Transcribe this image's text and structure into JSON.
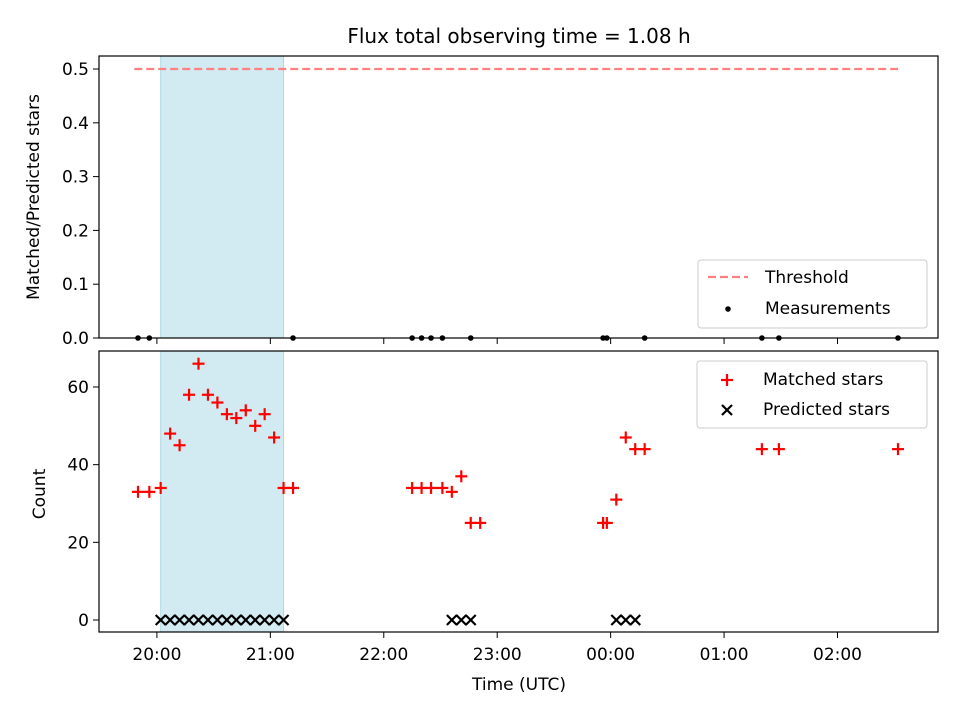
{
  "figure": {
    "title": "Flux total observing time = 1.08 h"
  },
  "colors": {
    "threshold": "#ff8080",
    "measurements": "#000000",
    "matched": "#ff0000",
    "predicted": "#000000",
    "shade": "#add8e6"
  },
  "chart_data": [
    {
      "type": "scatter",
      "panel": "top",
      "ylabel": "Matched/Predicted stars",
      "xlabel": "",
      "ylim": [
        0,
        0.52
      ],
      "yticks": [
        0.0,
        0.1,
        0.2,
        0.3,
        0.4,
        0.5
      ],
      "ytick_labels": [
        "0.0",
        "0.1",
        "0.2",
        "0.3",
        "0.4",
        "0.5"
      ],
      "x_units": "time (UTC), starting 19:50",
      "legend_position": "lower right",
      "shaded_span": [
        "20:02",
        "21:07"
      ],
      "series": [
        {
          "name": "Threshold",
          "style": "dashed-line",
          "x": [
            "19:48",
            "02:32"
          ],
          "y": [
            0.5,
            0.5
          ]
        },
        {
          "name": "Measurements",
          "style": "dot",
          "x": [
            "19:50",
            "19:56",
            "21:12",
            "22:15",
            "22:20",
            "22:25",
            "22:31",
            "22:46",
            "23:56",
            "23:58",
            "00:18",
            "01:20",
            "01:29",
            "02:32"
          ],
          "y": [
            0,
            0,
            0,
            0,
            0,
            0,
            0,
            0,
            0,
            0,
            0,
            0,
            0,
            0
          ]
        }
      ]
    },
    {
      "type": "scatter",
      "panel": "bottom",
      "ylabel": "Count",
      "xlabel": "Time (UTC)",
      "ylim": [
        -3,
        70
      ],
      "yticks": [
        0,
        20,
        40,
        60
      ],
      "ytick_labels": [
        "0",
        "20",
        "40",
        "60"
      ],
      "xticks": [
        "20:00",
        "21:00",
        "22:00",
        "23:00",
        "00:00",
        "01:00",
        "02:00"
      ],
      "xtick_labels": [
        "20:00",
        "21:00",
        "22:00",
        "23:00",
        "00:00",
        "01:00",
        "02:00"
      ],
      "legend_position": "upper right",
      "shaded_span": [
        "20:02",
        "21:07"
      ],
      "series": [
        {
          "name": "Matched stars",
          "marker": "plus",
          "x": [
            "19:50",
            "19:56",
            "20:02",
            "20:07",
            "20:12",
            "20:17",
            "20:22",
            "20:27",
            "20:32",
            "20:37",
            "20:42",
            "20:47",
            "20:52",
            "20:57",
            "21:02",
            "21:07",
            "21:12",
            "22:15",
            "22:20",
            "22:25",
            "22:31",
            "22:36",
            "22:41",
            "22:46",
            "22:51",
            "23:56",
            "23:58",
            "00:03",
            "00:08",
            "00:13",
            "00:18",
            "01:20",
            "01:29",
            "02:32"
          ],
          "y": [
            33,
            33,
            34,
            48,
            45,
            58,
            66,
            58,
            56,
            53,
            52,
            54,
            50,
            53,
            47,
            34,
            34,
            34,
            34,
            34,
            34,
            33,
            37,
            25,
            25,
            25,
            25,
            31,
            47,
            44,
            44,
            44,
            44,
            44
          ]
        },
        {
          "name": "Predicted stars",
          "marker": "x",
          "x": [
            "20:02",
            "20:07",
            "20:12",
            "20:17",
            "20:22",
            "20:27",
            "20:32",
            "20:37",
            "20:42",
            "20:47",
            "20:52",
            "20:57",
            "21:02",
            "21:07",
            "22:36",
            "22:41",
            "22:46",
            "00:03",
            "00:08",
            "00:13"
          ],
          "y": [
            0,
            0,
            0,
            0,
            0,
            0,
            0,
            0,
            0,
            0,
            0,
            0,
            0,
            0,
            0,
            0,
            0,
            0,
            0,
            0
          ]
        }
      ]
    }
  ]
}
